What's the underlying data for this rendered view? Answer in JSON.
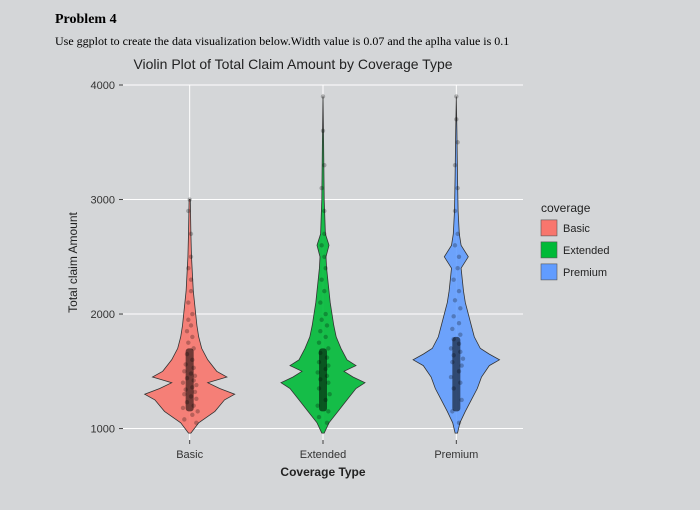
{
  "problem": {
    "title": "Problem 4",
    "description": "Use ggplot to create the data visualization below.Width value is 0.07 and the aplha value is 0.1"
  },
  "chart": {
    "type": "violin",
    "title": "Violin Plot of Total Claim Amount by Coverage Type",
    "title_fontsize": 14,
    "xlabel": "Coverage Type",
    "ylabel": "Total claim Amount",
    "label_fontsize": 12,
    "background_color": "#d4d6d8",
    "grid_color": "#ffffff",
    "grid_minor_color": "#e8e9ea",
    "ylim": [
      900,
      4000
    ],
    "yticks": [
      1000,
      2000,
      3000,
      4000
    ],
    "categories": [
      "Basic",
      "Extended",
      "Premium"
    ],
    "legend": {
      "title": "coverage",
      "items": [
        "Basic",
        "Extended",
        "Premium"
      ],
      "colors": [
        "#f8766d",
        "#00ba38",
        "#619cff"
      ]
    },
    "series_colors": [
      "#f8766d",
      "#00ba38",
      "#619cff"
    ],
    "violins": [
      {
        "category": "Basic",
        "color": "#f8766d",
        "outline": "#333333",
        "widths": [
          [
            960,
            0.02
          ],
          [
            1050,
            0.15
          ],
          [
            1150,
            0.42
          ],
          [
            1250,
            0.58
          ],
          [
            1300,
            0.75
          ],
          [
            1350,
            0.5
          ],
          [
            1400,
            0.3
          ],
          [
            1450,
            0.62
          ],
          [
            1500,
            0.45
          ],
          [
            1600,
            0.3
          ],
          [
            1700,
            0.2
          ],
          [
            1800,
            0.15
          ],
          [
            1900,
            0.12
          ],
          [
            2000,
            0.1
          ],
          [
            2100,
            0.08
          ],
          [
            2200,
            0.06
          ],
          [
            2300,
            0.05
          ],
          [
            2400,
            0.04
          ],
          [
            2500,
            0.03
          ],
          [
            2700,
            0.02
          ],
          [
            3000,
            0.01
          ]
        ],
        "jitter_points": [
          [
            1050,
            0.05
          ],
          [
            1080,
            -0.04
          ],
          [
            1120,
            0.02
          ],
          [
            1150,
            0.06
          ],
          [
            1180,
            -0.05
          ],
          [
            1200,
            0.03
          ],
          [
            1230,
            -0.02
          ],
          [
            1260,
            0.05
          ],
          [
            1280,
            0.01
          ],
          [
            1300,
            -0.04
          ],
          [
            1320,
            0.04
          ],
          [
            1340,
            -0.03
          ],
          [
            1360,
            0.02
          ],
          [
            1380,
            0.05
          ],
          [
            1400,
            -0.05
          ],
          [
            1420,
            0.03
          ],
          [
            1440,
            -0.02
          ],
          [
            1460,
            0.04
          ],
          [
            1480,
            0.01
          ],
          [
            1500,
            -0.04
          ],
          [
            1530,
            0.03
          ],
          [
            1560,
            -0.03
          ],
          [
            1600,
            0.02
          ],
          [
            1650,
            -0.02
          ],
          [
            1700,
            0.03
          ],
          [
            1750,
            -0.01
          ],
          [
            1800,
            0.02
          ],
          [
            1850,
            -0.02
          ],
          [
            1900,
            0.01
          ],
          [
            1950,
            -0.01
          ],
          [
            2000,
            0.02
          ],
          [
            2100,
            -0.01
          ],
          [
            2200,
            0.01
          ],
          [
            2300,
            0.01
          ],
          [
            2400,
            -0.01
          ],
          [
            2500,
            0.01
          ],
          [
            2700,
            0.01
          ],
          [
            2900,
            -0.01
          ],
          [
            3000,
            0.0
          ]
        ]
      },
      {
        "category": "Extended",
        "color": "#00ba38",
        "outline": "#333333",
        "widths": [
          [
            960,
            0.02
          ],
          [
            1050,
            0.1
          ],
          [
            1150,
            0.25
          ],
          [
            1250,
            0.4
          ],
          [
            1350,
            0.55
          ],
          [
            1400,
            0.7
          ],
          [
            1450,
            0.5
          ],
          [
            1500,
            0.35
          ],
          [
            1550,
            0.55
          ],
          [
            1600,
            0.4
          ],
          [
            1700,
            0.3
          ],
          [
            1800,
            0.22
          ],
          [
            1900,
            0.18
          ],
          [
            2000,
            0.15
          ],
          [
            2100,
            0.12
          ],
          [
            2200,
            0.1
          ],
          [
            2300,
            0.08
          ],
          [
            2400,
            0.06
          ],
          [
            2500,
            0.05
          ],
          [
            2600,
            0.1
          ],
          [
            2700,
            0.04
          ],
          [
            3000,
            0.02
          ],
          [
            3500,
            0.01
          ],
          [
            3900,
            0.0
          ]
        ],
        "jitter_points": [
          [
            1050,
            0.03
          ],
          [
            1100,
            -0.03
          ],
          [
            1150,
            0.04
          ],
          [
            1200,
            -0.04
          ],
          [
            1250,
            0.02
          ],
          [
            1300,
            0.05
          ],
          [
            1350,
            -0.03
          ],
          [
            1400,
            0.04
          ],
          [
            1430,
            -0.02
          ],
          [
            1460,
            0.03
          ],
          [
            1490,
            -0.04
          ],
          [
            1520,
            0.02
          ],
          [
            1550,
            0.04
          ],
          [
            1580,
            -0.03
          ],
          [
            1620,
            0.03
          ],
          [
            1660,
            -0.02
          ],
          [
            1700,
            0.04
          ],
          [
            1750,
            -0.03
          ],
          [
            1800,
            0.02
          ],
          [
            1850,
            -0.02
          ],
          [
            1900,
            0.03
          ],
          [
            1950,
            -0.01
          ],
          [
            2000,
            0.02
          ],
          [
            2100,
            -0.02
          ],
          [
            2200,
            0.01
          ],
          [
            2300,
            -0.01
          ],
          [
            2400,
            0.02
          ],
          [
            2500,
            0.01
          ],
          [
            2600,
            -0.01
          ],
          [
            2700,
            0.01
          ],
          [
            2900,
            0.01
          ],
          [
            3100,
            -0.01
          ],
          [
            3300,
            0.01
          ],
          [
            3600,
            0.0
          ],
          [
            3900,
            0.0
          ]
        ]
      },
      {
        "category": "Premium",
        "color": "#619cff",
        "outline": "#333333",
        "widths": [
          [
            960,
            0.02
          ],
          [
            1050,
            0.06
          ],
          [
            1150,
            0.15
          ],
          [
            1250,
            0.25
          ],
          [
            1350,
            0.35
          ],
          [
            1450,
            0.42
          ],
          [
            1550,
            0.55
          ],
          [
            1600,
            0.72
          ],
          [
            1650,
            0.55
          ],
          [
            1700,
            0.4
          ],
          [
            1800,
            0.3
          ],
          [
            1900,
            0.25
          ],
          [
            2000,
            0.2
          ],
          [
            2100,
            0.15
          ],
          [
            2200,
            0.12
          ],
          [
            2300,
            0.1
          ],
          [
            2400,
            0.08
          ],
          [
            2500,
            0.2
          ],
          [
            2600,
            0.08
          ],
          [
            2700,
            0.05
          ],
          [
            2900,
            0.03
          ],
          [
            3200,
            0.02
          ],
          [
            3600,
            0.01
          ],
          [
            3900,
            0.0
          ]
        ],
        "jitter_points": [
          [
            1050,
            0.02
          ],
          [
            1150,
            -0.03
          ],
          [
            1250,
            0.04
          ],
          [
            1350,
            -0.02
          ],
          [
            1400,
            0.03
          ],
          [
            1450,
            -0.04
          ],
          [
            1500,
            0.02
          ],
          [
            1550,
            0.04
          ],
          [
            1580,
            -0.03
          ],
          [
            1610,
            0.05
          ],
          [
            1640,
            -0.02
          ],
          [
            1670,
            0.03
          ],
          [
            1700,
            -0.04
          ],
          [
            1740,
            0.02
          ],
          [
            1780,
            -0.02
          ],
          [
            1820,
            0.03
          ],
          [
            1870,
            -0.03
          ],
          [
            1920,
            0.02
          ],
          [
            1980,
            -0.02
          ],
          [
            2050,
            0.03
          ],
          [
            2120,
            -0.01
          ],
          [
            2200,
            0.02
          ],
          [
            2300,
            -0.02
          ],
          [
            2400,
            0.01
          ],
          [
            2500,
            0.02
          ],
          [
            2600,
            -0.01
          ],
          [
            2700,
            0.01
          ],
          [
            2900,
            -0.01
          ],
          [
            3100,
            0.01
          ],
          [
            3300,
            -0.01
          ],
          [
            3500,
            0.01
          ],
          [
            3700,
            0.0
          ],
          [
            3900,
            0.0
          ]
        ]
      }
    ]
  }
}
